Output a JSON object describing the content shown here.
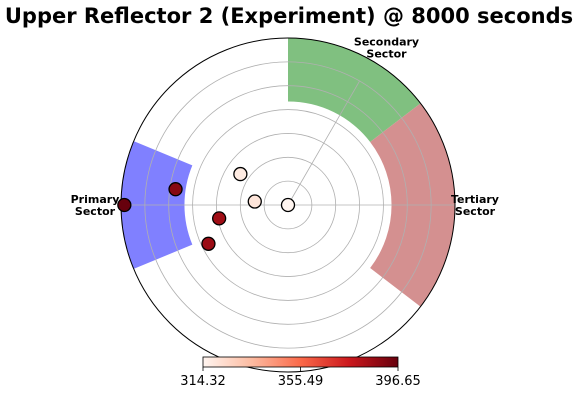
{
  "chart_data": {
    "type": "scatter",
    "subtype": "polar",
    "title": "Upper Reflector 2  (Experiment) @ 8000 seconds",
    "grid": true,
    "sectors": [
      {
        "label_line1": "Primary",
        "label_line2": "Sector",
        "theta_start_deg": 157.5,
        "theta_end_deg": 202.5,
        "color": "#8080ff"
      },
      {
        "label_line1": "Secondary",
        "label_line2": "Sector",
        "theta_start_deg": 37.5,
        "theta_end_deg": 90,
        "color": "#80c080"
      },
      {
        "label_line1": "Tertiary",
        "label_line2": "Sector",
        "theta_start_deg": -37.5,
        "theta_end_deg": 37.5,
        "color": "#d49090"
      }
    ],
    "points": [
      {
        "r": 0.0,
        "theta_deg": 0,
        "value": 314.3
      },
      {
        "r": 0.2,
        "theta_deg": 174,
        "value": 320.0
      },
      {
        "r": 0.34,
        "theta_deg": 147,
        "value": 318.0
      },
      {
        "r": 0.42,
        "theta_deg": 191,
        "value": 385.0
      },
      {
        "r": 0.53,
        "theta_deg": 206,
        "value": 386.0
      },
      {
        "r": 0.68,
        "theta_deg": 172,
        "value": 390.0
      },
      {
        "r": 0.98,
        "theta_deg": 180,
        "value": 396.6
      }
    ],
    "colorbar": {
      "min": 314.32,
      "max": 396.65,
      "ticks": [
        "314.32",
        "355.49",
        "396.65"
      ],
      "colors": [
        "#fff5f0",
        "#fcbba1",
        "#fb6a4a",
        "#cb181d",
        "#67000d"
      ]
    }
  }
}
